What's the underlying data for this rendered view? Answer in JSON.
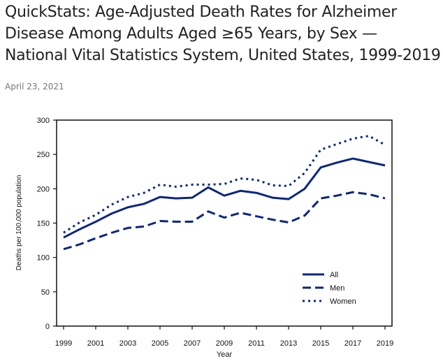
{
  "header": {
    "title": "QuickStats: Age-Adjusted Death Rates for Alzheimer Disease Among Adults Aged ≥65 Years, by Sex — National Vital Statistics System, United States, 1999-2019",
    "date": "April 23, 2021"
  },
  "chart_data": {
    "type": "line",
    "title": "",
    "xlabel": "Year",
    "ylabel": "Deaths per 100,000 population",
    "ylim": [
      0,
      300
    ],
    "xlim": [
      1999,
      2019
    ],
    "yticks": [
      0,
      50,
      100,
      150,
      200,
      250,
      300
    ],
    "xticks": [
      1999,
      2001,
      2003,
      2005,
      2007,
      2009,
      2011,
      2013,
      2015,
      2017,
      2019
    ],
    "grid": false,
    "legend_position": "bottom-right",
    "line_color": "#0a2682",
    "x": [
      1999,
      2000,
      2001,
      2002,
      2003,
      2004,
      2005,
      2006,
      2007,
      2008,
      2009,
      2010,
      2011,
      2012,
      2013,
      2014,
      2015,
      2016,
      2017,
      2018,
      2019
    ],
    "series": [
      {
        "name": "All",
        "style": "solid",
        "values": [
          129,
          141,
          152,
          164,
          173,
          178,
          188,
          186,
          187,
          202,
          190,
          197,
          194,
          187,
          185,
          200,
          231,
          238,
          244,
          239,
          234
        ]
      },
      {
        "name": "Men",
        "style": "dashed",
        "values": [
          112,
          119,
          128,
          136,
          143,
          145,
          153,
          152,
          152,
          167,
          158,
          165,
          160,
          155,
          151,
          161,
          186,
          190,
          195,
          192,
          186
        ]
      },
      {
        "name": "Women",
        "style": "dotted",
        "values": [
          136,
          151,
          162,
          177,
          188,
          194,
          206,
          203,
          206,
          206,
          207,
          215,
          213,
          205,
          204,
          223,
          257,
          265,
          273,
          277,
          264
        ]
      }
    ]
  }
}
